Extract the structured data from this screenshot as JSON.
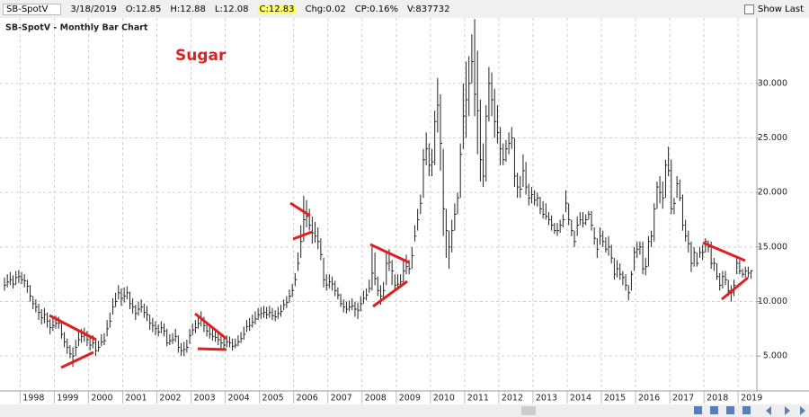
{
  "header": {
    "symbol": "SB-SpotV",
    "date": "3/18/2019",
    "open": "O:12.85",
    "high": "H:12.88",
    "low": "L:12.08",
    "close": "C:12.83",
    "change": "Chg:0.02",
    "change_percent": "CP:0.16%",
    "volume": "V:837732",
    "show_last": "Show Last"
  },
  "chart_data": {
    "type": "ohlc",
    "title": "SB-SpotV - Monthly Bar Chart",
    "annotation": "Sugar",
    "color": "#222",
    "grid": true,
    "ylim": [
      1.8,
      36
    ],
    "yticks": [
      {
        "value": 5,
        "label": "5.000"
      },
      {
        "value": 10,
        "label": "10.000"
      },
      {
        "value": 15,
        "label": "15.000"
      },
      {
        "value": 20,
        "label": "20.000"
      },
      {
        "value": 25,
        "label": "25.000"
      },
      {
        "value": 30,
        "label": "30.000"
      }
    ],
    "categories": [
      null,
      null,
      null,
      null,
      null,
      null,
      null,
      null,
      "1998",
      null,
      null,
      null,
      null,
      null,
      null,
      null,
      null,
      null,
      null,
      null,
      "1999",
      null,
      null,
      null,
      null,
      null,
      null,
      null,
      null,
      null,
      null,
      null,
      "2000",
      null,
      null,
      null,
      null,
      null,
      null,
      null,
      null,
      null,
      null,
      null,
      "2001",
      null,
      null,
      null,
      null,
      null,
      null,
      null,
      null,
      null,
      null,
      null,
      "2002",
      null,
      null,
      null,
      null,
      null,
      null,
      null,
      null,
      null,
      null,
      null,
      "2003",
      null,
      null,
      null,
      null,
      null,
      null,
      null,
      null,
      null,
      null,
      null,
      "2004",
      null,
      null,
      null,
      null,
      null,
      null,
      null,
      null,
      null,
      null,
      null,
      "2005",
      null,
      null,
      null,
      null,
      null,
      null,
      null,
      null,
      null,
      null,
      null,
      "2006",
      null,
      null,
      null,
      null,
      null,
      null,
      null,
      null,
      null,
      null,
      null,
      "2007",
      null,
      null,
      null,
      null,
      null,
      null,
      null,
      null,
      null,
      null,
      null,
      "2008",
      null,
      null,
      null,
      null,
      null,
      null,
      null,
      null,
      null,
      null,
      null,
      "2009",
      null,
      null,
      null,
      null,
      null,
      null,
      null,
      null,
      null,
      null,
      null,
      "2010",
      null,
      null,
      null,
      null,
      null,
      null,
      null,
      null,
      null,
      null,
      null,
      "2011",
      null,
      null,
      null,
      null,
      null,
      null,
      null,
      null,
      null,
      null,
      null,
      "2012",
      null,
      null,
      null,
      null,
      null,
      null,
      null,
      null,
      null,
      null,
      null,
      "2013",
      null,
      null,
      null,
      null,
      null,
      null,
      null,
      null,
      null,
      null,
      null,
      "2014",
      null,
      null,
      null,
      null,
      null,
      null,
      null,
      null,
      null,
      null,
      null,
      "2015",
      null,
      null,
      null,
      null,
      null,
      null,
      null,
      null,
      null,
      null,
      null,
      "2016",
      null,
      null,
      null,
      null,
      null,
      null,
      null,
      null,
      null,
      null,
      null,
      "2017",
      null,
      null,
      null,
      null,
      null,
      null,
      null,
      null,
      null,
      null,
      null,
      "2018",
      null,
      null,
      null,
      null,
      null,
      null,
      null,
      null,
      null,
      null,
      null,
      "2019",
      null,
      null
    ],
    "high": [
      12.2,
      12.5,
      12.7,
      12.4,
      12.8,
      12.9,
      12.7,
      12.5,
      12.0,
      11.5,
      10.5,
      10.2,
      9.8,
      9.3,
      9.4,
      9.0,
      8.4,
      8.6,
      8.7,
      8.6,
      8.2,
      7.2,
      6.6,
      6.0,
      5.8,
      6.5,
      7.3,
      7.5,
      7.6,
      7.3,
      6.8,
      6.9,
      6.5,
      6.4,
      7.0,
      7.1,
      8.3,
      9.0,
      10.3,
      10.8,
      11.5,
      11.2,
      11.3,
      11.4,
      10.9,
      10.3,
      9.7,
      10.0,
      10.2,
      9.8,
      9.6,
      8.8,
      8.5,
      8.2,
      7.9,
      8.2,
      8.0,
      7.5,
      7.0,
      7.1,
      7.5,
      6.9,
      6.2,
      6.3,
      6.5,
      7.5,
      8.0,
      8.3,
      8.7,
      9.1,
      8.6,
      8.0,
      7.7,
      7.5,
      7.3,
      7.1,
      6.9,
      6.7,
      6.9,
      6.8,
      6.6,
      6.6,
      6.9,
      7.2,
      7.7,
      8.3,
      8.5,
      8.8,
      9.1,
      9.4,
      9.5,
      9.6,
      9.5,
      9.6,
      9.4,
      9.2,
      9.5,
      9.7,
      10.2,
      10.5,
      11.1,
      11.6,
      12.6,
      14.5,
      17.0,
      19.7,
      19.3,
      18.5,
      17.8,
      17.3,
      16.8,
      15.8,
      14.0,
      12.5,
      12.5,
      12.3,
      11.9,
      11.3,
      10.7,
      10.2,
      10.0,
      10.1,
      10.3,
      10.0,
      9.9,
      10.5,
      11.0,
      11.2,
      12.0,
      15.0,
      14.5,
      12.3,
      11.5,
      11.8,
      14.5,
      14.8,
      13.8,
      12.5,
      12.5,
      12.5,
      13.8,
      14.3,
      13.8,
      15.0,
      17.0,
      18.5,
      19.8,
      24.0,
      25.5,
      24.5,
      24.0,
      27.5,
      30.5,
      29.0,
      24.0,
      18.5,
      16.5,
      17.5,
      19.0,
      20.0,
      24.5,
      30.0,
      32.0,
      32.5,
      34.5,
      35.9,
      33.0,
      28.5,
      24.5,
      28.0,
      31.5,
      31.0,
      29.5,
      28.0,
      26.0,
      24.5,
      24.8,
      25.5,
      26.0,
      25.0,
      21.8,
      21.5,
      23.5,
      22.8,
      20.8,
      20.5,
      20.2,
      20.0,
      19.6,
      19.2,
      19.0,
      18.2,
      17.9,
      17.2,
      17.2,
      17.5,
      18.0,
      20.2,
      19.0,
      17.5,
      16.5,
      17.8,
      18.2,
      18.2,
      18.0,
      18.3,
      18.3,
      16.8,
      15.8,
      16.8,
      16.5,
      15.9,
      16.0,
      15.2,
      14.0,
      13.8,
      13.5,
      12.8,
      12.5,
      11.5,
      12.8,
      15.0,
      15.5,
      15.5,
      15.5,
      14.0,
      16.0,
      16.5,
      19.0,
      21.0,
      21.5,
      21.0,
      23.0,
      24.2,
      23.0,
      19.5,
      21.5,
      21.2,
      19.8,
      17.5,
      16.5,
      15.5,
      15.0,
      14.5,
      15.0,
      15.2,
      15.8,
      15.6,
      15.5,
      14.0,
      13.5,
      12.6,
      12.8,
      12.8,
      12.0,
      11.5,
      12.0,
      14.0,
      13.8,
      13.0,
      13.2,
      13.2,
      12.88
    ],
    "low": [
      11.0,
      11.3,
      11.5,
      11.2,
      11.5,
      11.7,
      11.6,
      11.3,
      10.8,
      10.0,
      9.3,
      9.0,
      8.3,
      7.9,
      8.0,
      7.6,
      7.0,
      7.3,
      7.5,
      7.5,
      6.6,
      5.8,
      5.2,
      4.8,
      4.0,
      5.0,
      5.9,
      6.2,
      6.3,
      5.9,
      5.5,
      5.7,
      5.0,
      5.4,
      5.9,
      6.0,
      6.8,
      7.6,
      8.8,
      9.5,
      10.2,
      9.6,
      9.9,
      10.2,
      9.3,
      8.9,
      8.3,
      8.7,
      9.0,
      8.5,
      8.2,
      7.4,
      7.2,
      6.9,
      6.8,
      7.1,
      6.8,
      5.9,
      6.0,
      6.1,
      6.3,
      5.3,
      5.0,
      5.0,
      5.3,
      6.1,
      6.9,
      7.1,
      7.5,
      7.7,
      7.2,
      6.8,
      6.6,
      6.4,
      6.3,
      6.0,
      5.7,
      5.6,
      5.8,
      5.8,
      5.5,
      5.7,
      5.9,
      6.2,
      6.5,
      7.2,
      7.3,
      7.6,
      7.9,
      8.3,
      8.4,
      8.5,
      8.4,
      8.5,
      8.3,
      8.2,
      8.4,
      8.6,
      9.2,
      9.4,
      9.9,
      10.4,
      11.4,
      12.8,
      14.0,
      15.5,
      16.8,
      16.5,
      15.3,
      15.4,
      14.8,
      13.8,
      11.3,
      11.0,
      11.2,
      11.0,
      10.5,
      10.2,
      9.5,
      9.0,
      8.9,
      9.1,
      9.2,
      8.6,
      8.4,
      9.1,
      9.8,
      10.1,
      10.8,
      11.0,
      11.5,
      10.5,
      9.7,
      10.2,
      11.5,
      12.8,
      11.5,
      11.0,
      11.2,
      11.4,
      11.5,
      12.5,
      12.5,
      13.0,
      15.5,
      16.5,
      18.0,
      19.5,
      22.5,
      21.5,
      21.5,
      22.5,
      25.5,
      22.0,
      16.0,
      14.0,
      13.0,
      14.5,
      16.5,
      18.0,
      19.5,
      24.0,
      25.0,
      27.0,
      30.0,
      27.0,
      23.5,
      21.0,
      20.5,
      21.0,
      26.5,
      27.0,
      25.0,
      24.5,
      22.5,
      22.5,
      22.8,
      23.5,
      24.0,
      20.5,
      19.5,
      19.5,
      20.5,
      19.8,
      18.8,
      19.0,
      18.8,
      18.7,
      18.0,
      17.6,
      17.5,
      17.0,
      16.5,
      16.2,
      16.0,
      16.3,
      16.8,
      18.2,
      17.0,
      16.0,
      15.0,
      16.0,
      17.0,
      16.8,
      17.0,
      17.5,
      16.5,
      15.2,
      14.0,
      15.2,
      15.0,
      14.5,
      14.2,
      13.5,
      12.0,
      12.2,
      12.0,
      11.5,
      11.0,
      10.1,
      11.0,
      12.8,
      14.0,
      14.3,
      12.5,
      12.4,
      13.2,
      15.0,
      15.5,
      18.5,
      19.0,
      18.5,
      19.5,
      21.5,
      18.0,
      18.0,
      19.5,
      19.2,
      16.5,
      15.5,
      14.5,
      12.7,
      13.2,
      13.2,
      14.0,
      13.8,
      14.5,
      14.5,
      13.0,
      12.8,
      12.0,
      11.0,
      11.2,
      11.5,
      10.5,
      10.0,
      10.5,
      12.5,
      12.5,
      12.2,
      12.2,
      12.2,
      12.08
    ],
    "close": [
      11.5,
      11.8,
      12.0,
      11.6,
      12.2,
      12.3,
      12.0,
      11.9,
      11.4,
      10.5,
      9.8,
      9.5,
      9.0,
      8.5,
      8.8,
      8.2,
      7.6,
      7.8,
      8.0,
      8.0,
      7.0,
      6.3,
      5.8,
      5.2,
      5.0,
      5.8,
      6.5,
      6.8,
      6.9,
      6.5,
      6.0,
      6.2,
      5.5,
      5.8,
      6.3,
      6.4,
      7.5,
      8.2,
      9.5,
      10.0,
      10.8,
      10.3,
      10.5,
      10.8,
      9.8,
      9.5,
      8.9,
      9.3,
      9.5,
      9.0,
      8.8,
      8.0,
      7.8,
      7.5,
      7.2,
      7.6,
      7.3,
      6.2,
      6.4,
      6.5,
      6.8,
      5.8,
      5.5,
      5.6,
      5.8,
      6.9,
      7.4,
      7.6,
      8.0,
      8.4,
      7.8,
      7.3,
      7.0,
      6.8,
      6.7,
      6.5,
      6.2,
      6.0,
      6.3,
      6.2,
      5.9,
      6.0,
      6.3,
      6.6,
      7.0,
      7.7,
      7.8,
      8.1,
      8.4,
      8.8,
      8.9,
      9.0,
      8.8,
      9.0,
      8.7,
      8.6,
      8.9,
      9.1,
      9.7,
      9.9,
      10.5,
      11.0,
      12.0,
      13.5,
      15.5,
      17.5,
      17.8,
      17.0,
      16.3,
      16.0,
      15.5,
      14.3,
      12.0,
      11.5,
      11.8,
      11.6,
      11.0,
      10.6,
      9.8,
      9.5,
      9.3,
      9.5,
      9.6,
      9.3,
      9.2,
      9.8,
      10.3,
      10.6,
      11.2,
      12.6,
      12.1,
      11.0,
      10.5,
      11.0,
      13.5,
      13.6,
      12.8,
      11.5,
      11.6,
      11.8,
      12.8,
      13.2,
      13.0,
      14.2,
      16.0,
      17.5,
      19.0,
      23.0,
      24.0,
      22.5,
      22.8,
      26.5,
      28.0,
      24.5,
      18.5,
      16.5,
      15.0,
      16.5,
      18.0,
      19.5,
      23.5,
      27.0,
      28.5,
      30.0,
      32.0,
      29.0,
      27.5,
      23.0,
      21.5,
      27.0,
      30.0,
      28.5,
      26.5,
      25.5,
      24.0,
      23.0,
      24.0,
      24.5,
      25.0,
      21.5,
      20.5,
      20.3,
      22.0,
      20.5,
      19.5,
      19.8,
      19.3,
      19.5,
      18.5,
      18.0,
      17.8,
      17.5,
      17.0,
      16.5,
      16.5,
      17.0,
      17.5,
      19.0,
      17.5,
      16.5,
      15.5,
      17.0,
      17.5,
      17.2,
      17.5,
      18.0,
      17.0,
      15.8,
      14.8,
      16.0,
      15.5,
      14.8,
      15.0,
      14.0,
      12.5,
      13.0,
      12.5,
      12.2,
      11.5,
      10.8,
      12.5,
      14.5,
      14.8,
      15.0,
      13.0,
      13.2,
      15.5,
      16.0,
      18.5,
      20.5,
      20.0,
      19.5,
      22.5,
      22.0,
      18.5,
      19.0,
      20.8,
      19.5,
      17.0,
      16.0,
      15.3,
      13.5,
      14.5,
      13.5,
      14.5,
      14.5,
      15.5,
      15.0,
      13.5,
      13.5,
      12.3,
      11.5,
      12.3,
      12.0,
      11.0,
      10.8,
      11.5,
      13.5,
      12.8,
      12.5,
      12.8,
      12.6,
      12.83
    ]
  }
}
